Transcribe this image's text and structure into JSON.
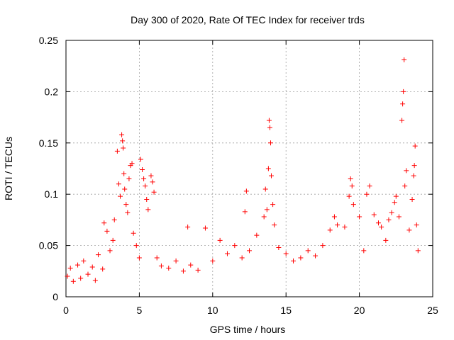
{
  "chart_data": {
    "type": "scatter",
    "title": "Day 300 of 2020, Rate Of TEC Index for receiver trds",
    "xlabel": "GPS time / hours",
    "ylabel": "ROTI / TECUs",
    "xlim": [
      0,
      25
    ],
    "ylim": [
      0,
      0.25
    ],
    "x_ticks": [
      0,
      5,
      10,
      15,
      20,
      25
    ],
    "y_ticks": [
      0,
      0.05,
      0.1,
      0.15,
      0.2,
      0.25
    ],
    "x_tick_labels": [
      "0",
      "5",
      "10",
      "15",
      "20",
      "25"
    ],
    "y_tick_labels": [
      "0",
      "0.05",
      "0.1",
      "0.15",
      "0.2",
      "0.25"
    ],
    "grid": true,
    "marker": "+",
    "color": "#ff0000",
    "series": [
      {
        "points": [
          [
            0.1,
            0.02
          ],
          [
            0.3,
            0.028
          ],
          [
            0.5,
            0.015
          ],
          [
            0.8,
            0.031
          ],
          [
            1.0,
            0.018
          ],
          [
            1.2,
            0.035
          ],
          [
            1.5,
            0.022
          ],
          [
            1.8,
            0.029
          ],
          [
            2.0,
            0.016
          ],
          [
            2.2,
            0.041
          ],
          [
            2.5,
            0.027
          ],
          [
            2.6,
            0.072
          ],
          [
            2.8,
            0.064
          ],
          [
            3.0,
            0.045
          ],
          [
            3.2,
            0.055
          ],
          [
            3.3,
            0.075
          ],
          [
            3.5,
            0.142
          ],
          [
            3.6,
            0.11
          ],
          [
            3.7,
            0.098
          ],
          [
            3.8,
            0.158
          ],
          [
            3.85,
            0.152
          ],
          [
            3.9,
            0.145
          ],
          [
            3.95,
            0.12
          ],
          [
            4.0,
            0.105
          ],
          [
            4.1,
            0.09
          ],
          [
            4.2,
            0.082
          ],
          [
            4.3,
            0.115
          ],
          [
            4.4,
            0.128
          ],
          [
            4.5,
            0.13
          ],
          [
            4.6,
            0.062
          ],
          [
            4.8,
            0.05
          ],
          [
            5.0,
            0.038
          ],
          [
            5.1,
            0.134
          ],
          [
            5.2,
            0.124
          ],
          [
            5.3,
            0.115
          ],
          [
            5.4,
            0.108
          ],
          [
            5.5,
            0.095
          ],
          [
            5.6,
            0.085
          ],
          [
            5.8,
            0.118
          ],
          [
            5.9,
            0.112
          ],
          [
            6.0,
            0.102
          ],
          [
            6.2,
            0.038
          ],
          [
            6.5,
            0.03
          ],
          [
            7.0,
            0.028
          ],
          [
            7.5,
            0.035
          ],
          [
            8.0,
            0.025
          ],
          [
            8.3,
            0.068
          ],
          [
            8.5,
            0.031
          ],
          [
            9.0,
            0.026
          ],
          [
            9.5,
            0.067
          ],
          [
            10.0,
            0.035
          ],
          [
            10.5,
            0.055
          ],
          [
            11.0,
            0.042
          ],
          [
            11.5,
            0.05
          ],
          [
            12.0,
            0.038
          ],
          [
            12.2,
            0.083
          ],
          [
            12.3,
            0.103
          ],
          [
            12.5,
            0.045
          ],
          [
            13.0,
            0.06
          ],
          [
            13.5,
            0.078
          ],
          [
            13.6,
            0.105
          ],
          [
            13.7,
            0.085
          ],
          [
            13.8,
            0.125
          ],
          [
            13.85,
            0.172
          ],
          [
            13.9,
            0.165
          ],
          [
            13.95,
            0.15
          ],
          [
            14.0,
            0.118
          ],
          [
            14.1,
            0.09
          ],
          [
            14.2,
            0.07
          ],
          [
            14.5,
            0.048
          ],
          [
            15.0,
            0.042
          ],
          [
            15.5,
            0.035
          ],
          [
            16.0,
            0.038
          ],
          [
            16.5,
            0.045
          ],
          [
            17.0,
            0.04
          ],
          [
            17.5,
            0.05
          ],
          [
            18.0,
            0.065
          ],
          [
            18.3,
            0.078
          ],
          [
            18.5,
            0.07
          ],
          [
            19.0,
            0.068
          ],
          [
            19.3,
            0.098
          ],
          [
            19.4,
            0.115
          ],
          [
            19.5,
            0.108
          ],
          [
            19.6,
            0.09
          ],
          [
            20.0,
            0.078
          ],
          [
            20.3,
            0.045
          ],
          [
            20.5,
            0.1
          ],
          [
            20.7,
            0.108
          ],
          [
            21.0,
            0.08
          ],
          [
            21.3,
            0.072
          ],
          [
            21.5,
            0.068
          ],
          [
            21.8,
            0.055
          ],
          [
            22.0,
            0.075
          ],
          [
            22.2,
            0.082
          ],
          [
            22.4,
            0.092
          ],
          [
            22.5,
            0.098
          ],
          [
            22.7,
            0.078
          ],
          [
            22.9,
            0.172
          ],
          [
            22.95,
            0.188
          ],
          [
            23.0,
            0.2
          ],
          [
            23.05,
            0.231
          ],
          [
            23.1,
            0.108
          ],
          [
            23.2,
            0.123
          ],
          [
            23.4,
            0.065
          ],
          [
            23.6,
            0.095
          ],
          [
            23.7,
            0.118
          ],
          [
            23.75,
            0.128
          ],
          [
            23.8,
            0.147
          ],
          [
            23.9,
            0.07
          ],
          [
            24.0,
            0.045
          ]
        ]
      }
    ]
  }
}
